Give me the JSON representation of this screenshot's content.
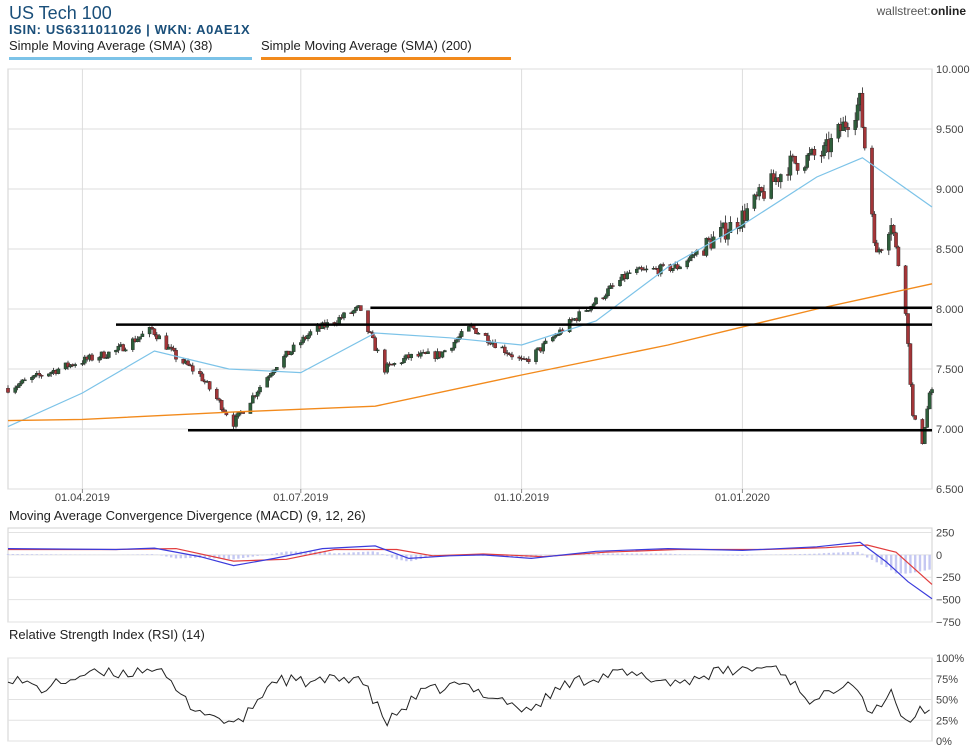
{
  "header": {
    "title": "US Tech 100",
    "isin": "ISIN: US6311011026  | WKN: A0AE1X",
    "brand_prefix": "wallstreet:",
    "brand_suffix": "online"
  },
  "legend": [
    {
      "label": "Simple Moving Average (SMA) (38)",
      "color": "#7cc3e8"
    },
    {
      "label": "Simple Moving Average (SMA) (200)",
      "color": "#f28a1c"
    }
  ],
  "panels": {
    "macd_label": "Moving Average Convergence Divergence (MACD) (9, 12, 26)",
    "rsi_label": "Relative Strength Index (RSI) (14)"
  },
  "chart_data": [
    {
      "type": "candlestick",
      "title": "US Tech 100",
      "y_ticks": [
        "10.000",
        "9.500",
        "9.000",
        "8.500",
        "8.000",
        "7.500",
        "7.000",
        "6.500"
      ],
      "ylim": [
        6500,
        10000
      ],
      "x_ticks": [
        "01.04.2019",
        "01.07.2019",
        "01.10.2019",
        "01.01.2020"
      ],
      "x_range": [
        "2019-03-01",
        "2020-03-20"
      ],
      "close_path": [
        [
          "2019-03-01",
          7340
        ],
        [
          "2019-03-15",
          7450
        ],
        [
          "2019-03-29",
          7550
        ],
        [
          "2019-04-15",
          7650
        ],
        [
          "2019-04-30",
          7830
        ],
        [
          "2019-05-10",
          7600
        ],
        [
          "2019-05-20",
          7450
        ],
        [
          "2019-06-03",
          7050
        ],
        [
          "2019-06-20",
          7520
        ],
        [
          "2019-07-05",
          7800
        ],
        [
          "2019-07-25",
          8000
        ],
        [
          "2019-08-05",
          7500
        ],
        [
          "2019-08-15",
          7600
        ],
        [
          "2019-08-28",
          7620
        ],
        [
          "2019-09-10",
          7850
        ],
        [
          "2019-10-02",
          7550
        ],
        [
          "2019-10-25",
          7950
        ],
        [
          "2019-11-15",
          8300
        ],
        [
          "2019-12-05",
          8350
        ],
        [
          "2019-12-31",
          8750
        ],
        [
          "2020-01-20",
          9200
        ],
        [
          "2020-02-04",
          9300
        ],
        [
          "2020-02-19",
          9720
        ],
        [
          "2020-02-26",
          8450
        ],
        [
          "2020-03-03",
          8750
        ],
        [
          "2020-03-09",
          8000
        ],
        [
          "2020-03-12",
          7100
        ],
        [
          "2020-03-16",
          6900
        ],
        [
          "2020-03-19",
          7300
        ]
      ],
      "series": [
        {
          "name": "Simple Moving Average (SMA) (38)",
          "points": [
            [
              "2019-03-01",
              7020
            ],
            [
              "2019-04-01",
              7300
            ],
            [
              "2019-05-01",
              7650
            ],
            [
              "2019-06-01",
              7500
            ],
            [
              "2019-07-01",
              7470
            ],
            [
              "2019-08-01",
              7800
            ],
            [
              "2019-09-01",
              7760
            ],
            [
              "2019-10-01",
              7700
            ],
            [
              "2019-11-01",
              7900
            ],
            [
              "2019-12-01",
              8350
            ],
            [
              "2020-01-01",
              8700
            ],
            [
              "2020-02-01",
              9100
            ],
            [
              "2020-02-20",
              9260
            ],
            [
              "2020-03-20",
              8850
            ]
          ]
        },
        {
          "name": "Simple Moving Average (SMA) (200)",
          "points": [
            [
              "2019-03-01",
              7070
            ],
            [
              "2019-04-01",
              7080
            ],
            [
              "2019-06-01",
              7140
            ],
            [
              "2019-08-01",
              7190
            ],
            [
              "2019-10-01",
              7450
            ],
            [
              "2019-12-01",
              7700
            ],
            [
              "2020-02-01",
              8000
            ],
            [
              "2020-03-20",
              8210
            ]
          ]
        }
      ],
      "horizontal_lines": [
        {
          "y": 8010,
          "from": "2019-07-30",
          "to": "2020-03-20"
        },
        {
          "y": 7870,
          "from": "2019-04-15",
          "to": "2020-03-20"
        },
        {
          "y": 6990,
          "from": "2019-05-15",
          "to": "2020-03-20"
        }
      ],
      "colors": {
        "up": "#2e5e3b",
        "down": "#a33538"
      }
    },
    {
      "type": "line",
      "title": "Moving Average Convergence Divergence (MACD) (9, 12, 26)",
      "y_ticks": [
        "250",
        "0",
        "−250",
        "−500",
        "−750"
      ],
      "ylim": [
        -750,
        300
      ],
      "series": [
        {
          "color": "#3b3bdc",
          "points": [
            [
              "2019-03-01",
              70
            ],
            [
              "2019-04-15",
              60
            ],
            [
              "2019-05-01",
              75
            ],
            [
              "2019-05-20",
              -20
            ],
            [
              "2019-06-03",
              -120
            ],
            [
              "2019-06-20",
              -40
            ],
            [
              "2019-07-10",
              70
            ],
            [
              "2019-08-01",
              100
            ],
            [
              "2019-08-15",
              -40
            ],
            [
              "2019-09-01",
              -10
            ],
            [
              "2019-09-15",
              0
            ],
            [
              "2019-10-05",
              -40
            ],
            [
              "2019-11-01",
              40
            ],
            [
              "2019-12-01",
              70
            ],
            [
              "2020-01-01",
              50
            ],
            [
              "2020-02-01",
              90
            ],
            [
              "2020-02-19",
              140
            ],
            [
              "2020-03-01",
              -80
            ],
            [
              "2020-03-10",
              -300
            ],
            [
              "2020-03-20",
              -490
            ]
          ]
        },
        {
          "color": "#e23c3c",
          "points": [
            [
              "2019-03-01",
              60
            ],
            [
              "2019-04-15",
              60
            ],
            [
              "2019-05-10",
              70
            ],
            [
              "2019-06-03",
              -70
            ],
            [
              "2019-06-25",
              -50
            ],
            [
              "2019-07-15",
              60
            ],
            [
              "2019-08-10",
              60
            ],
            [
              "2019-08-25",
              -10
            ],
            [
              "2019-09-15",
              10
            ],
            [
              "2019-10-10",
              -20
            ],
            [
              "2019-11-05",
              30
            ],
            [
              "2019-12-05",
              60
            ],
            [
              "2020-01-10",
              60
            ],
            [
              "2020-02-05",
              80
            ],
            [
              "2020-02-22",
              110
            ],
            [
              "2020-03-05",
              30
            ],
            [
              "2020-03-20",
              -330
            ]
          ]
        }
      ]
    },
    {
      "type": "line",
      "title": "Relative Strength Index (RSI) (14)",
      "y_ticks": [
        "100%",
        "75%",
        "50%",
        "25%",
        "0%"
      ],
      "ylim": [
        0,
        100
      ],
      "series": [
        {
          "color": "#222222",
          "points": [
            [
              "2019-03-01",
              78
            ],
            [
              "2019-03-15",
              62
            ],
            [
              "2019-04-01",
              80
            ],
            [
              "2019-04-20",
              82
            ],
            [
              "2019-05-01",
              90
            ],
            [
              "2019-05-15",
              45
            ],
            [
              "2019-05-25",
              30
            ],
            [
              "2019-06-05",
              20
            ],
            [
              "2019-06-20",
              75
            ],
            [
              "2019-07-05",
              70
            ],
            [
              "2019-07-25",
              78
            ],
            [
              "2019-08-06",
              22
            ],
            [
              "2019-08-20",
              58
            ],
            [
              "2019-09-05",
              68
            ],
            [
              "2019-09-25",
              48
            ],
            [
              "2019-10-03",
              35
            ],
            [
              "2019-10-20",
              70
            ],
            [
              "2019-11-10",
              82
            ],
            [
              "2019-12-05",
              70
            ],
            [
              "2019-12-20",
              82
            ],
            [
              "2020-01-15",
              90
            ],
            [
              "2020-01-31",
              45
            ],
            [
              "2020-02-15",
              78
            ],
            [
              "2020-02-24",
              32
            ],
            [
              "2020-03-03",
              62
            ],
            [
              "2020-03-10",
              12
            ],
            [
              "2020-03-14",
              40
            ],
            [
              "2020-03-20",
              38
            ]
          ]
        }
      ]
    }
  ]
}
